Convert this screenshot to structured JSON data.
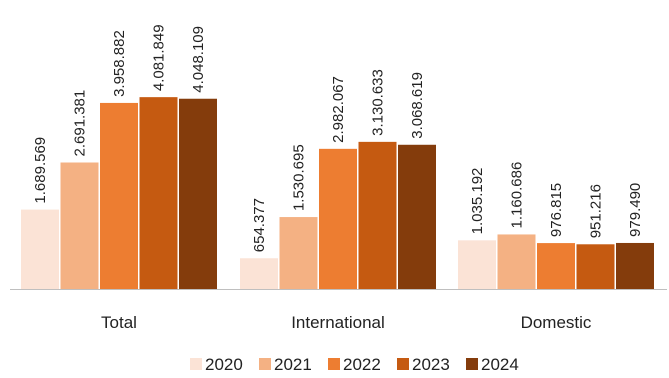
{
  "chart_data": {
    "type": "bar",
    "categories": [
      "Total",
      "International",
      "Domestic"
    ],
    "series": [
      {
        "name": "2020",
        "color": "#fbe3d6",
        "values": [
          1689569,
          654377,
          1035192
        ],
        "labels": [
          "1.689.569",
          "654.377",
          "1.035.192"
        ]
      },
      {
        "name": "2021",
        "color": "#f4b183",
        "values": [
          2691381,
          1530695,
          1160686
        ],
        "labels": [
          "2.691.381",
          "1.530.695",
          "1.160.686"
        ]
      },
      {
        "name": "2022",
        "color": "#ed7d31",
        "values": [
          3958882,
          2982067,
          976815
        ],
        "labels": [
          "3.958.882",
          "2.982.067",
          "976.815"
        ]
      },
      {
        "name": "2023",
        "color": "#c55a11",
        "values": [
          4081849,
          3130633,
          951216
        ],
        "labels": [
          "4.081.849",
          "3.130.633",
          "951.216"
        ]
      },
      {
        "name": "2024",
        "color": "#843c0c",
        "values": [
          4048109,
          3068619,
          979490
        ],
        "labels": [
          "4.048.109",
          "3.068.619",
          "979.490"
        ]
      }
    ],
    "ylim": [
      0,
      5000000
    ],
    "grid": false,
    "legend": "bottom",
    "axis_color": "#bfbfbf"
  }
}
